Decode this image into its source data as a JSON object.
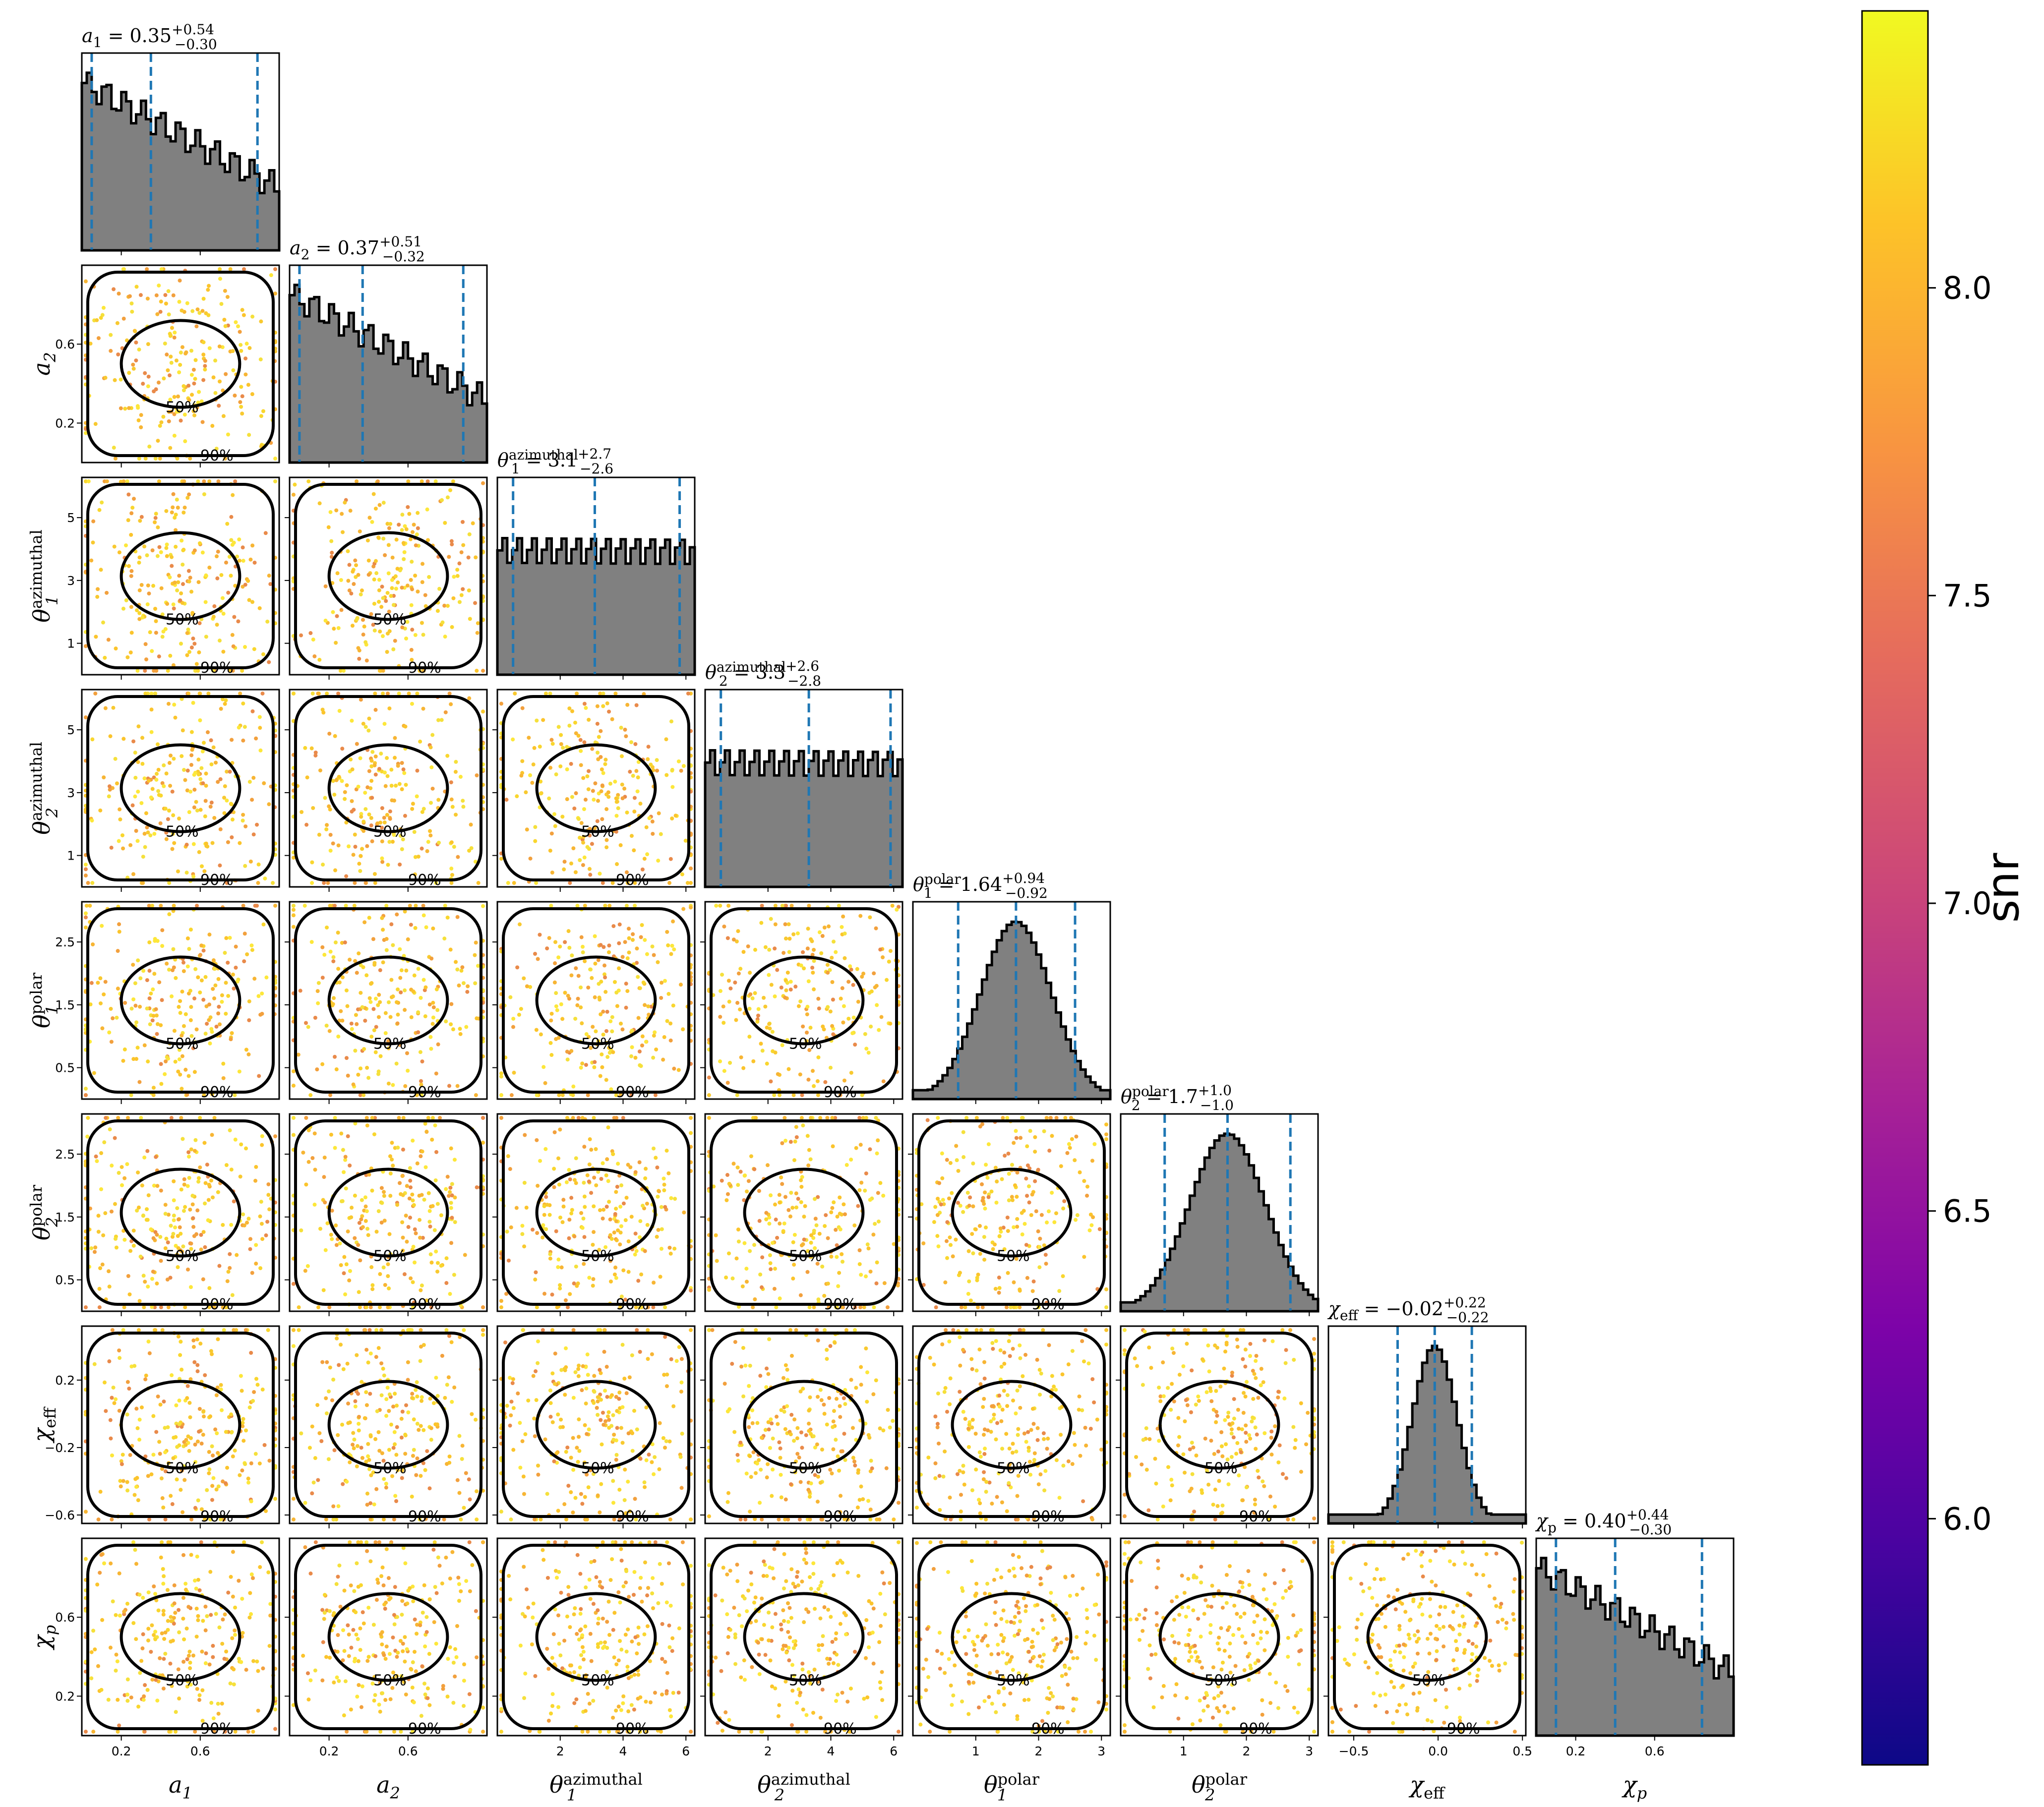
{
  "chart_data": {
    "type": "scatter",
    "figure": "corner",
    "parameters": [
      {
        "key": "a1",
        "label": "a",
        "sub": "1",
        "sup": "",
        "range": [
          0,
          1
        ],
        "ticks": [
          0.2,
          0.6
        ],
        "tick_labels": [
          "0.2",
          "0.6"
        ],
        "median": 0.35,
        "lo": 0.05,
        "hi": 0.89,
        "title": {
          "value": "0.35",
          "plus": "+0.54",
          "minus": "−0.30"
        }
      },
      {
        "key": "a2",
        "label": "a",
        "sub": "2",
        "sup": "",
        "range": [
          0,
          1
        ],
        "ticks": [
          0.2,
          0.6
        ],
        "tick_labels": [
          "0.2",
          "0.6"
        ],
        "median": 0.37,
        "lo": 0.05,
        "hi": 0.88,
        "title": {
          "value": "0.37",
          "plus": "+0.51",
          "minus": "−0.32"
        }
      },
      {
        "key": "theta1_az",
        "label": "θ",
        "sub": "1",
        "sup": "azimuthal",
        "range": [
          0,
          6.28
        ],
        "ticks": [
          2,
          4,
          6
        ],
        "tick_labels": [
          "2",
          "4",
          "6"
        ],
        "median": 3.1,
        "lo": 0.5,
        "hi": 5.8,
        "yticks": [
          1,
          3,
          5
        ],
        "ytick_labels": [
          "1",
          "3",
          "5"
        ],
        "title": {
          "value": "3.1",
          "plus": "+2.7",
          "minus": "−2.6"
        }
      },
      {
        "key": "theta2_az",
        "label": "θ",
        "sub": "2",
        "sup": "azimuthal",
        "range": [
          0,
          6.28
        ],
        "ticks": [
          2,
          4,
          6
        ],
        "tick_labels": [
          "2",
          "4",
          "6"
        ],
        "median": 3.3,
        "lo": 0.5,
        "hi": 5.9,
        "yticks": [
          1,
          3,
          5
        ],
        "ytick_labels": [
          "1",
          "3",
          "5"
        ],
        "title": {
          "value": "3.3",
          "plus": "+2.6",
          "minus": "−2.8"
        }
      },
      {
        "key": "theta1_pol",
        "label": "θ",
        "sub": "1",
        "sup": "polar",
        "range": [
          0,
          3.14
        ],
        "ticks": [
          1,
          2,
          3
        ],
        "tick_labels": [
          "1",
          "2",
          "3"
        ],
        "median": 1.64,
        "lo": 0.72,
        "hi": 2.58,
        "yticks": [
          0.5,
          1.5,
          2.5
        ],
        "ytick_labels": [
          "0.5",
          "1.5",
          "2.5"
        ],
        "title": {
          "value": "1.64",
          "plus": "+0.94",
          "minus": "−0.92"
        }
      },
      {
        "key": "theta2_pol",
        "label": "θ",
        "sub": "2",
        "sup": "polar",
        "range": [
          0,
          3.14
        ],
        "ticks": [
          1,
          2,
          3
        ],
        "tick_labels": [
          "1",
          "2",
          "3"
        ],
        "median": 1.7,
        "lo": 0.7,
        "hi": 2.7,
        "yticks": [
          0.5,
          1.5,
          2.5
        ],
        "ytick_labels": [
          "0.5",
          "1.5",
          "2.5"
        ],
        "title": {
          "value": "1.7",
          "plus": "+1.0",
          "minus": "−1.0"
        }
      },
      {
        "key": "chi_eff",
        "label": "χ",
        "sub": "eff",
        "sup": "",
        "range": [
          -0.65,
          0.52
        ],
        "ticks": [
          -0.5,
          0.0,
          0.5
        ],
        "tick_labels": [
          "−0.5",
          "0.0",
          "0.5"
        ],
        "median": -0.02,
        "lo": -0.24,
        "hi": 0.2,
        "yticks": [
          -0.6,
          -0.2,
          0.2
        ],
        "ytick_labels": [
          "−0.6",
          "−0.2",
          "0.2"
        ],
        "title": {
          "value": "−0.02",
          "plus": "+0.22",
          "minus": "−0.22"
        }
      },
      {
        "key": "chi_p",
        "label": "χ",
        "sub": "p",
        "sup": "",
        "range": [
          0,
          1
        ],
        "ticks": [
          0.2,
          0.6
        ],
        "tick_labels": [
          "0.2",
          "0.6"
        ],
        "median": 0.4,
        "lo": 0.1,
        "hi": 0.84,
        "title": {
          "value": "0.40",
          "plus": "+0.44",
          "minus": "−0.30"
        }
      }
    ],
    "contour_levels": [
      "50%",
      "90%"
    ],
    "colorbar": {
      "label": "snr",
      "range": [
        5.6,
        8.45
      ],
      "ticks": [
        6.0,
        6.5,
        7.0,
        7.5,
        8.0
      ],
      "tick_labels": [
        "6.0",
        "6.5",
        "7.0",
        "7.5",
        "8.0"
      ],
      "colormap": "plasma"
    },
    "colors": {
      "hist_fill": "#808080",
      "hist_edge": "#000000",
      "quantile_line": "#1f77b4",
      "contour": "#000000"
    }
  }
}
